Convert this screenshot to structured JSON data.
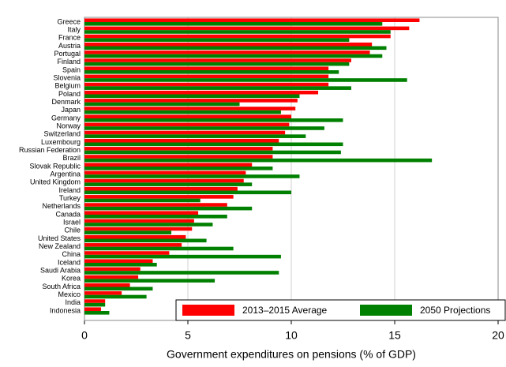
{
  "chart_data": {
    "type": "barh",
    "x_label": "Government expenditures on pensions (% of GDP)",
    "categories": [
      "Greece",
      "Italy",
      "France",
      "Austria",
      "Portugal",
      "Finland",
      "Spain",
      "Slovenia",
      "Belgium",
      "Poland",
      "Denmark",
      "Japan",
      "Germany",
      "Norway",
      "Switzerland",
      "Luxembourg",
      "Russian Federation",
      "Brazil",
      "Slovak Republic",
      "Argentina",
      "United Kingdom",
      "Ireland",
      "Turkey",
      "Netherlands",
      "Canada",
      "Israel",
      "Chile",
      "United States",
      "New Zealand",
      "China",
      "Iceland",
      "Saudi Arabia",
      "Korea",
      "South Africa",
      "Mexico",
      "India",
      "Indonesia"
    ],
    "series": [
      {
        "name": "2013–2015 Average",
        "color": "#ff0000",
        "values": [
          16.2,
          15.7,
          14.8,
          13.9,
          13.8,
          12.9,
          11.8,
          11.8,
          11.8,
          11.3,
          10.3,
          10.2,
          10.0,
          9.9,
          9.7,
          9.4,
          9.1,
          9.1,
          8.1,
          7.8,
          7.7,
          7.4,
          7.2,
          6.9,
          5.5,
          5.3,
          5.2,
          4.9,
          4.7,
          4.1,
          3.3,
          2.7,
          2.6,
          2.2,
          1.8,
          1.0,
          0.8
        ]
      },
      {
        "name": "2050 Projections",
        "color": "#008000",
        "values": [
          14.4,
          14.8,
          12.8,
          14.6,
          14.4,
          12.8,
          12.3,
          15.6,
          12.9,
          10.4,
          7.5,
          9.5,
          12.5,
          11.6,
          10.7,
          12.5,
          12.4,
          16.8,
          9.1,
          10.4,
          8.1,
          10.0,
          5.6,
          8.1,
          6.9,
          6.2,
          4.2,
          5.9,
          7.2,
          9.5,
          3.5,
          9.4,
          6.3,
          3.3,
          3.0,
          1.0,
          1.2
        ]
      }
    ],
    "xlim": [
      0,
      20
    ],
    "xticks": [
      0,
      5,
      10,
      15,
      20
    ],
    "grid": true,
    "legend": "bottom-right"
  }
}
